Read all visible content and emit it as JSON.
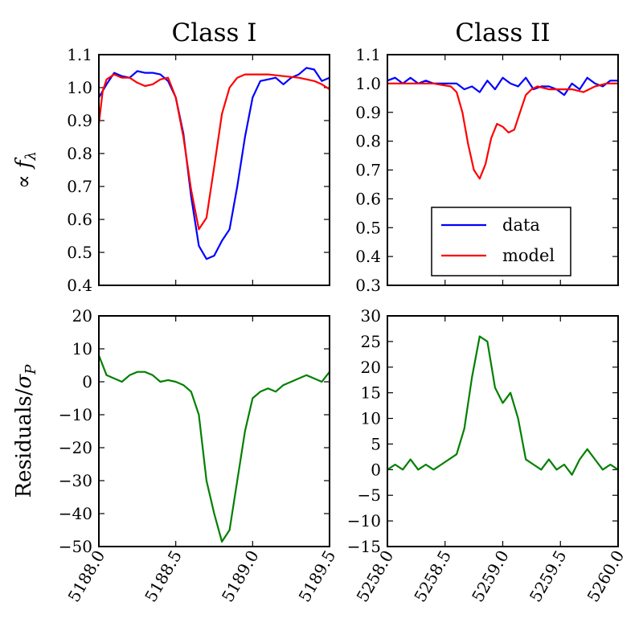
{
  "chart_data": [
    {
      "id": "class1-flux",
      "type": "line",
      "title": "Class I",
      "xlabel": "",
      "ylabel": "∝ f_λ",
      "xlim": [
        5188.0,
        5189.5
      ],
      "ylim": [
        0.4,
        1.1
      ],
      "yticks": [
        "0.4",
        "0.5",
        "0.6",
        "0.7",
        "0.8",
        "0.9",
        "1.0",
        "1.1"
      ],
      "legend": false,
      "grid": false,
      "series": [
        {
          "name": "data",
          "color": "#0000ff",
          "x": [
            5188.0,
            5188.05,
            5188.1,
            5188.15,
            5188.2,
            5188.25,
            5188.3,
            5188.35,
            5188.4,
            5188.45,
            5188.5,
            5188.55,
            5188.6,
            5188.65,
            5188.7,
            5188.75,
            5188.8,
            5188.85,
            5188.9,
            5188.95,
            5189.0,
            5189.05,
            5189.1,
            5189.15,
            5189.2,
            5189.25,
            5189.3,
            5189.35,
            5189.4,
            5189.45,
            5189.5
          ],
          "y": [
            0.97,
            1.01,
            1.045,
            1.035,
            1.03,
            1.05,
            1.045,
            1.045,
            1.04,
            1.02,
            0.97,
            0.86,
            0.67,
            0.52,
            0.48,
            0.49,
            0.535,
            0.57,
            0.7,
            0.85,
            0.97,
            1.02,
            1.025,
            1.03,
            1.01,
            1.03,
            1.04,
            1.06,
            1.055,
            1.02,
            1.03
          ]
        },
        {
          "name": "model",
          "color": "#ff0000",
          "x": [
            5188.0,
            5188.025,
            5188.05,
            5188.1,
            5188.15,
            5188.2,
            5188.25,
            5188.3,
            5188.35,
            5188.4,
            5188.45,
            5188.5,
            5188.55,
            5188.6,
            5188.65,
            5188.7,
            5188.75,
            5188.8,
            5188.85,
            5188.9,
            5188.95,
            5189.0,
            5189.1,
            5189.2,
            5189.3,
            5189.4,
            5189.45,
            5189.5
          ],
          "y": [
            0.89,
            0.99,
            1.025,
            1.04,
            1.03,
            1.03,
            1.015,
            1.005,
            1.01,
            1.025,
            1.03,
            0.97,
            0.85,
            0.69,
            0.57,
            0.605,
            0.76,
            0.92,
            1.0,
            1.03,
            1.04,
            1.04,
            1.04,
            1.035,
            1.03,
            1.02,
            1.01,
            0.995
          ]
        }
      ]
    },
    {
      "id": "class2-flux",
      "type": "line",
      "title": "Class II",
      "xlabel": "",
      "ylabel": "",
      "xlim": [
        5258.0,
        5260.0
      ],
      "ylim": [
        0.3,
        1.1
      ],
      "yticks": [
        "0.3",
        "0.4",
        "0.5",
        "0.6",
        "0.7",
        "0.8",
        "0.9",
        "1.0",
        "1.1"
      ],
      "legend": true,
      "legend_position": "lower-right",
      "grid": false,
      "series": [
        {
          "name": "data",
          "color": "#0000ff",
          "x": [
            5258.0,
            5258.067,
            5258.133,
            5258.2,
            5258.267,
            5258.333,
            5258.4,
            5258.467,
            5258.533,
            5258.6,
            5258.667,
            5258.733,
            5258.8,
            5258.867,
            5258.933,
            5259.0,
            5259.067,
            5259.133,
            5259.2,
            5259.267,
            5259.333,
            5259.4,
            5259.467,
            5259.533,
            5259.6,
            5259.667,
            5259.733,
            5259.8,
            5259.867,
            5259.933,
            5260.0
          ],
          "y": [
            1.01,
            1.02,
            1.0,
            1.02,
            1.0,
            1.01,
            1.0,
            1.0,
            1.0,
            1.0,
            0.98,
            0.99,
            0.97,
            1.01,
            0.98,
            1.02,
            1.0,
            0.99,
            1.02,
            0.98,
            0.99,
            0.99,
            0.98,
            0.96,
            1.0,
            0.98,
            1.02,
            1.0,
            0.99,
            1.01,
            1.01
          ]
        },
        {
          "name": "model",
          "color": "#ff0000",
          "x": [
            5258.0,
            5258.2,
            5258.4,
            5258.55,
            5258.6,
            5258.65,
            5258.7,
            5258.75,
            5258.8,
            5258.85,
            5258.9,
            5258.95,
            5259.0,
            5259.05,
            5259.1,
            5259.15,
            5259.2,
            5259.25,
            5259.3,
            5259.4,
            5259.5,
            5259.6,
            5259.7,
            5259.8,
            5259.9,
            5260.0
          ],
          "y": [
            1.0,
            1.0,
            1.0,
            0.99,
            0.97,
            0.9,
            0.79,
            0.7,
            0.67,
            0.72,
            0.81,
            0.86,
            0.85,
            0.83,
            0.84,
            0.9,
            0.96,
            0.98,
            0.99,
            0.98,
            0.98,
            0.98,
            0.97,
            0.99,
            1.0,
            1.0
          ]
        }
      ]
    },
    {
      "id": "class1-residuals",
      "type": "line",
      "title": "",
      "xlabel": "",
      "ylabel": "Residuals/σ_P",
      "xlim": [
        5188.0,
        5189.5
      ],
      "ylim": [
        -50,
        20
      ],
      "yticks": [
        "−50",
        "−40",
        "−30",
        "−20",
        "−10",
        "0",
        "10",
        "20"
      ],
      "xticks": [
        "5188.0",
        "5188.5",
        "5189.0",
        "5189.5"
      ],
      "legend": false,
      "grid": false,
      "series": [
        {
          "name": "",
          "color": "#008000",
          "x": [
            5188.0,
            5188.05,
            5188.1,
            5188.15,
            5188.2,
            5188.25,
            5188.3,
            5188.35,
            5188.4,
            5188.45,
            5188.5,
            5188.55,
            5188.6,
            5188.65,
            5188.7,
            5188.75,
            5188.8,
            5188.85,
            5188.9,
            5188.95,
            5189.0,
            5189.05,
            5189.1,
            5189.15,
            5189.2,
            5189.25,
            5189.3,
            5189.35,
            5189.4,
            5189.45,
            5189.5
          ],
          "y": [
            8,
            2,
            1,
            0,
            2,
            3,
            3,
            2,
            0,
            0.5,
            0,
            -1,
            -3,
            -10,
            -30,
            -40,
            -48.5,
            -45,
            -30,
            -15,
            -5,
            -3,
            -2,
            -3,
            -1,
            0,
            1,
            2,
            1,
            0,
            3
          ]
        }
      ]
    },
    {
      "id": "class2-residuals",
      "type": "line",
      "title": "",
      "xlabel": "",
      "ylabel": "",
      "xlim": [
        5258.0,
        5260.0
      ],
      "ylim": [
        -15,
        30
      ],
      "yticks": [
        "−15",
        "−10",
        "−5",
        "0",
        "5",
        "10",
        "15",
        "20",
        "25",
        "30"
      ],
      "xticks": [
        "5258.0",
        "5258.5",
        "5259.0",
        "5259.5",
        "5260.0"
      ],
      "legend": false,
      "grid": false,
      "series": [
        {
          "name": "",
          "color": "#008000",
          "x": [
            5258.0,
            5258.067,
            5258.133,
            5258.2,
            5258.267,
            5258.333,
            5258.4,
            5258.467,
            5258.533,
            5258.6,
            5258.667,
            5258.733,
            5258.8,
            5258.867,
            5258.933,
            5259.0,
            5259.067,
            5259.133,
            5259.2,
            5259.267,
            5259.333,
            5259.4,
            5259.467,
            5259.533,
            5259.6,
            5259.667,
            5259.733,
            5259.8,
            5259.867,
            5259.933,
            5260.0
          ],
          "y": [
            0,
            1,
            0,
            2,
            0,
            1,
            0,
            1,
            2,
            3,
            8,
            18,
            26,
            25,
            16,
            13,
            15,
            10,
            2,
            1,
            0,
            2,
            0,
            1,
            -1,
            2,
            4,
            2,
            0,
            1,
            0
          ]
        }
      ]
    }
  ],
  "legend": {
    "entries": [
      {
        "label": "data",
        "color": "#0000ff"
      },
      {
        "label": "model",
        "color": "#ff0000"
      }
    ]
  }
}
